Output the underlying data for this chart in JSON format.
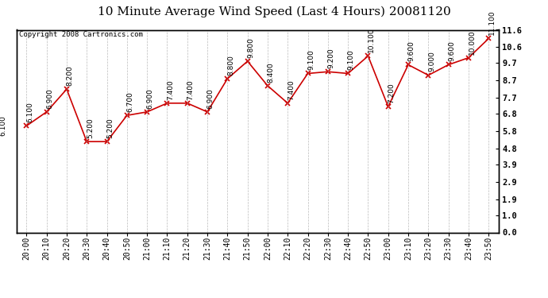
{
  "title": "10 Minute Average Wind Speed (Last 4 Hours) 20081120",
  "copyright": "Copyright 2008 Cartronics.com",
  "times": [
    "20:00",
    "20:10",
    "20:20",
    "20:30",
    "20:40",
    "20:50",
    "21:00",
    "21:10",
    "21:20",
    "21:30",
    "21:40",
    "21:50",
    "22:00",
    "22:10",
    "22:20",
    "22:30",
    "22:40",
    "22:50",
    "23:00",
    "23:10",
    "23:20",
    "23:30",
    "23:40",
    "23:50"
  ],
  "values": [
    6.1,
    6.9,
    8.2,
    5.2,
    5.2,
    6.7,
    6.9,
    7.4,
    7.4,
    6.9,
    8.8,
    9.8,
    8.4,
    7.4,
    9.1,
    9.2,
    9.1,
    10.1,
    7.2,
    9.6,
    9.0,
    9.6,
    10.0,
    11.1
  ],
  "line_color": "#cc0000",
  "marker_color": "#cc0000",
  "bg_color": "#ffffff",
  "grid_color": "#aaaaaa",
  "yticks": [
    0.0,
    1.0,
    1.9,
    2.9,
    3.9,
    4.8,
    5.8,
    6.8,
    7.7,
    8.7,
    9.7,
    10.6,
    11.6
  ],
  "ylim": [
    0.0,
    11.6
  ],
  "title_fontsize": 11,
  "label_fontsize": 7,
  "annotation_fontsize": 6.5,
  "copyright_fontsize": 6.5
}
